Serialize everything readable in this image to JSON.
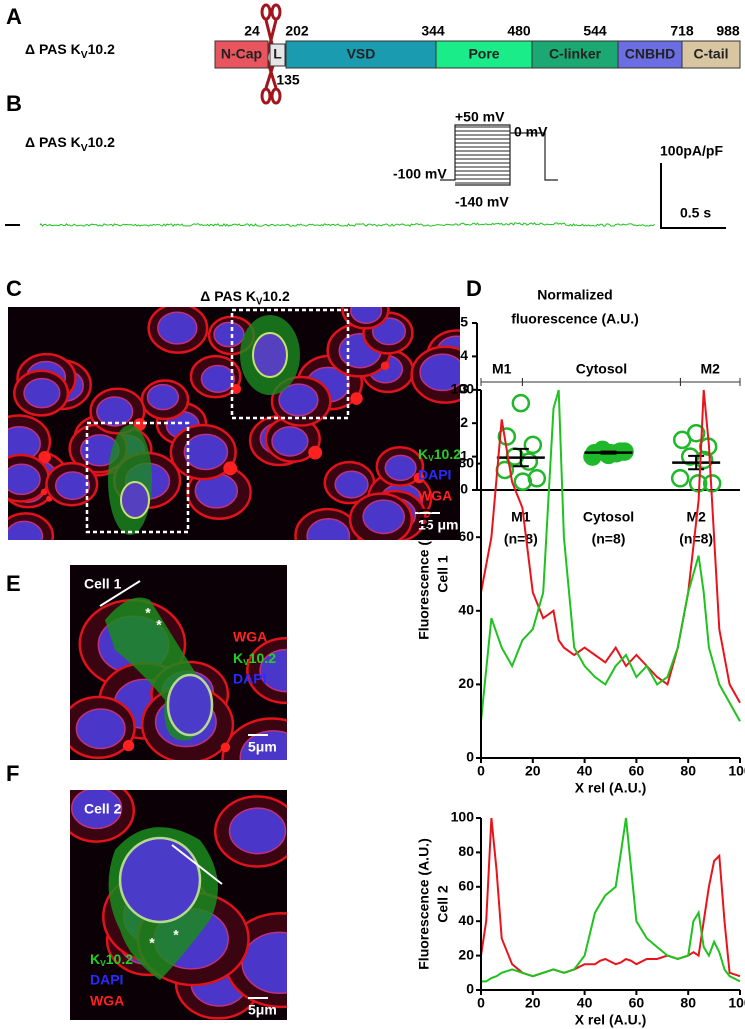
{
  "panel_a": {
    "letter": "A",
    "label": {
      "main": "Δ PAS K",
      "sub": "V",
      "rest": "10.2"
    },
    "domains": [
      "N-Cap",
      "L",
      "VSD",
      "Pore",
      "C-linker",
      "CNBHD",
      "C-tail"
    ],
    "positions_top": [
      "24",
      "202",
      "344",
      "480",
      "544",
      "718",
      "988"
    ],
    "positions_bottom": [
      "135"
    ]
  },
  "panel_b": {
    "letter": "B",
    "label": {
      "main": "Δ PAS K",
      "sub": "V",
      "rest": "10.2"
    },
    "voltages": [
      "+50 mV",
      "0 mV",
      "-100 mV",
      "-140 mV"
    ],
    "scale_current": "100pA/pF",
    "scale_time": "0.5 s"
  },
  "panel_c": {
    "letter": "C",
    "title": {
      "main": "Δ PAS K",
      "sub": "V",
      "rest": "10.2"
    },
    "legend": [
      {
        "main": "K",
        "sub": "V",
        "rest": "10.2"
      },
      "DAPI",
      "WGA"
    ],
    "scale": "15 μm"
  },
  "panel_d": {
    "letter": "D",
    "chart_data": {
      "type": "scatter",
      "title_lines": [
        "Normalized",
        "fluorescence (A.U.)"
      ],
      "categories": [
        "M1",
        "Cytosol",
        "M2"
      ],
      "n_labels": [
        "(n=8)",
        "(n=8)",
        "(n=8)"
      ],
      "points": [
        [
          2.6,
          1.6,
          1.35,
          1.0,
          0.85,
          0.6,
          0.35,
          0.25
        ],
        [
          1.05,
          1.1,
          1.15,
          1.2,
          1.1,
          1.0,
          1.15,
          1.1
        ],
        [
          1.7,
          1.5,
          1.3,
          1.0,
          0.9,
          0.35,
          0.2,
          0.2
        ]
      ],
      "filled": [
        false,
        true,
        false
      ],
      "means": [
        0.97,
        1.12,
        0.82
      ],
      "sem": [
        0.26,
        0.03,
        0.2
      ],
      "color": "#1fb82a",
      "ylim": [
        0,
        5
      ],
      "yticks": [
        0,
        1,
        2,
        3,
        4,
        5
      ]
    }
  },
  "panel_e": {
    "letter": "E",
    "image": {
      "cell": "Cell 1",
      "channels": [
        "WGA",
        {
          "main": "K",
          "sub": "V",
          "rest": "10.2"
        },
        "DAPI"
      ],
      "markers": [
        "*",
        "*"
      ],
      "scale": "5μm"
    },
    "chart_data": {
      "type": "line",
      "regions": [
        {
          "label": "M1",
          "start": 0,
          "end": 16
        },
        {
          "label": "Cytosol",
          "start": 16,
          "end": 77
        },
        {
          "label": "M2",
          "start": 77,
          "end": 100
        }
      ],
      "ylabel_lines": [
        "Fluorescence (A.U.)",
        "Cell 1"
      ],
      "xlabel": "X rel (A.U.)",
      "x": [
        0,
        4,
        8,
        12,
        16,
        20,
        24,
        28,
        30,
        32,
        36,
        40,
        44,
        48,
        52,
        56,
        60,
        64,
        68,
        72,
        76,
        80,
        84,
        86,
        88,
        92,
        96,
        100
      ],
      "series": [
        {
          "color": "#e8141c",
          "values": [
            45,
            60,
            92,
            75,
            68,
            45,
            38,
            40,
            32,
            30,
            28,
            30,
            28,
            26,
            30,
            25,
            28,
            25,
            22,
            20,
            30,
            45,
            70,
            100,
            85,
            35,
            20,
            15
          ]
        },
        {
          "color": "#1fc21f",
          "values": [
            10,
            38,
            30,
            25,
            32,
            35,
            45,
            95,
            100,
            60,
            30,
            25,
            22,
            20,
            25,
            28,
            22,
            25,
            20,
            22,
            30,
            45,
            55,
            45,
            30,
            20,
            15,
            10
          ]
        }
      ],
      "xlim": [
        0,
        100
      ],
      "ylim": [
        0,
        100
      ],
      "xticks": [
        0,
        20,
        40,
        60,
        80,
        100
      ],
      "yticks": [
        0,
        20,
        40,
        60,
        80,
        100
      ]
    }
  },
  "panel_f": {
    "letter": "F",
    "image": {
      "cell": "Cell 2",
      "channels": [
        {
          "main": "K",
          "sub": "V",
          "rest": "10.2"
        },
        "DAPI",
        "WGA"
      ],
      "markers": [
        "*",
        "*"
      ],
      "scale": "5μm"
    },
    "chart_data": {
      "type": "line",
      "ylabel_lines": [
        "Fluorescence (A.U.)",
        "Cell 2"
      ],
      "xlabel": "X rel (A.U.)",
      "x": [
        0,
        2,
        4,
        6,
        8,
        12,
        16,
        20,
        24,
        28,
        32,
        36,
        40,
        44,
        46,
        48,
        52,
        54,
        56,
        58,
        60,
        64,
        68,
        72,
        76,
        80,
        82,
        84,
        86,
        88,
        90,
        92,
        94,
        96,
        100
      ],
      "series": [
        {
          "color": "#e8141c",
          "values": [
            20,
            40,
            100,
            70,
            30,
            15,
            10,
            8,
            10,
            12,
            10,
            12,
            15,
            15,
            17,
            18,
            15,
            16,
            18,
            17,
            15,
            18,
            18,
            20,
            18,
            20,
            22,
            20,
            40,
            60,
            75,
            78,
            40,
            10,
            8
          ]
        },
        {
          "color": "#1fc21f",
          "values": [
            5,
            5,
            7,
            8,
            10,
            12,
            10,
            8,
            10,
            12,
            10,
            12,
            20,
            45,
            50,
            55,
            60,
            80,
            100,
            70,
            40,
            30,
            25,
            20,
            18,
            20,
            40,
            45,
            25,
            20,
            28,
            22,
            12,
            8,
            5
          ]
        }
      ],
      "xlim": [
        0,
        100
      ],
      "ylim": [
        0,
        100
      ],
      "xticks": [
        0,
        20,
        40,
        60,
        80,
        100
      ],
      "yticks": [
        0,
        20,
        40,
        60,
        80,
        100
      ]
    }
  }
}
